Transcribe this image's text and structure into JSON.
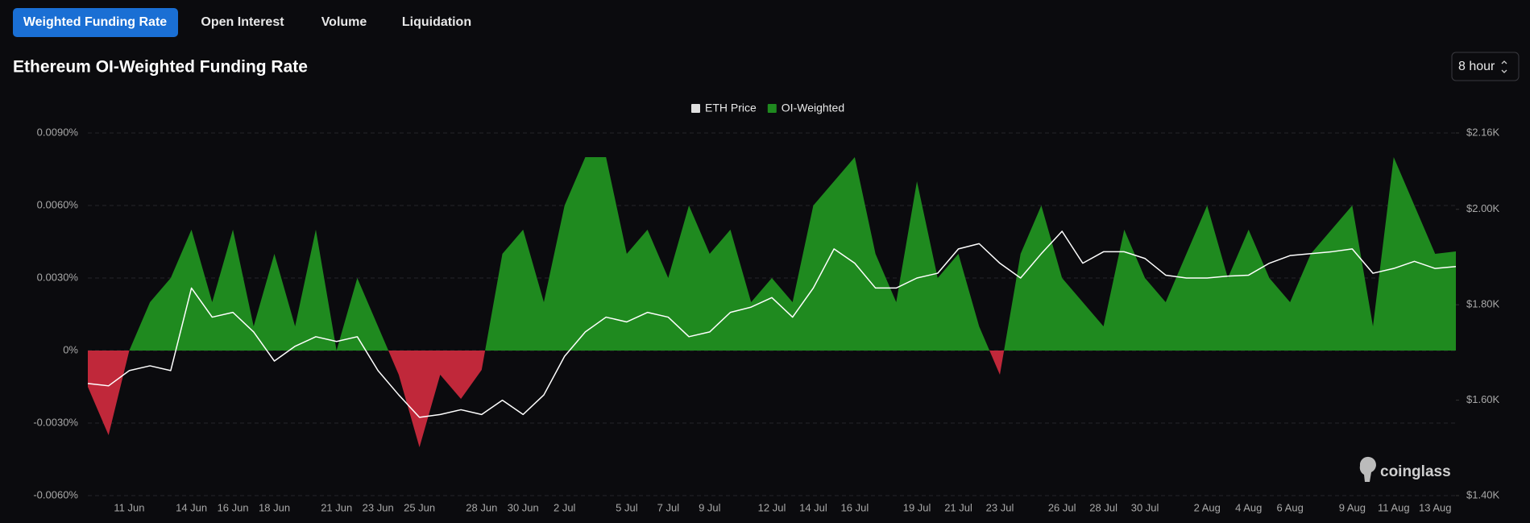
{
  "tabs": [
    "Weighted Funding Rate",
    "Open Interest",
    "Volume",
    "Liquidation"
  ],
  "interval": "8 hour",
  "watermark": "coinglass",
  "chart_data": {
    "type": "area",
    "title": "Ethereum OI-Weighted Funding Rate",
    "categories": [
      null,
      null,
      "11 Jun",
      null,
      null,
      "14 Jun",
      null,
      "16 Jun",
      null,
      "18 Jun",
      null,
      null,
      "21 Jun",
      null,
      "23 Jun",
      null,
      "25 Jun",
      null,
      null,
      "28 Jun",
      null,
      "30 Jun",
      null,
      "2 Jul",
      null,
      null,
      "5 Jul",
      null,
      "7 Jul",
      null,
      "9 Jul",
      null,
      null,
      "12 Jul",
      null,
      "14 Jul",
      null,
      "16 Jul",
      null,
      null,
      "19 Jul",
      null,
      "21 Jul",
      null,
      "23 Jul",
      null,
      null,
      "26 Jul",
      null,
      "28 Jul",
      null,
      "30 Jul",
      null,
      null,
      "2 Aug",
      null,
      "4 Aug",
      null,
      "6 Aug",
      null,
      null,
      "9 Aug",
      null,
      "11 Aug",
      null,
      "13 Aug",
      null
    ],
    "series": [
      {
        "name": "ETH Price",
        "type": "line",
        "axis": "y2",
        "color": "#ffffff",
        "values": [
          1635,
          1630,
          1662,
          1672,
          1662,
          1835,
          1774,
          1784,
          1743,
          1682,
          1713,
          1733,
          1723,
          1733,
          1662,
          1611,
          1564,
          1570,
          1580,
          1570,
          1600,
          1570,
          1611,
          1692,
          1743,
          1774,
          1764,
          1784,
          1774,
          1733,
          1743,
          1784,
          1795,
          1815,
          1774,
          1835,
          1917,
          1887,
          1835,
          1835,
          1856,
          1866,
          1917,
          1928,
          1887,
          1856,
          1907,
          1954,
          1887,
          1911,
          1911,
          1897,
          1862,
          1856,
          1856,
          1860,
          1862,
          1887,
          1903,
          1907,
          1911,
          1917,
          1866,
          1876,
          1891,
          1876,
          1880
        ]
      },
      {
        "name": "OI-Weighted",
        "type": "area",
        "color": "#1f8a1f",
        "negative_color": "#c0283a",
        "values": [
          -0.0015,
          -0.0035,
          0.0,
          0.002,
          0.003,
          0.005,
          0.002,
          0.005,
          0.001,
          0.004,
          0.001,
          0.005,
          0.0,
          0.003,
          0.001,
          -0.001,
          -0.004,
          -0.001,
          -0.002,
          -0.0008,
          0.004,
          0.005,
          0.002,
          0.006,
          0.008,
          0.008,
          0.004,
          0.005,
          0.003,
          0.006,
          0.004,
          0.005,
          0.002,
          0.003,
          0.002,
          0.006,
          0.007,
          0.008,
          0.004,
          0.002,
          0.007,
          0.003,
          0.004,
          0.001,
          -0.001,
          0.004,
          0.006,
          0.003,
          0.002,
          0.001,
          0.005,
          0.003,
          0.002,
          0.004,
          0.006,
          0.003,
          0.005,
          0.003,
          0.002,
          0.004,
          0.005,
          0.006,
          0.001,
          0.008,
          0.006,
          0.004,
          0.0041
        ]
      }
    ],
    "ylim": [
      -0.006,
      0.009
    ],
    "yticks": [
      {
        "value": -0.006,
        "label": "-0.0060%"
      },
      {
        "value": -0.003,
        "label": "-0.0030%"
      },
      {
        "value": 0,
        "label": "0%"
      },
      {
        "value": 0.003,
        "label": "0.0030%"
      },
      {
        "value": 0.006,
        "label": "0.0060%"
      },
      {
        "value": 0.009,
        "label": "0.0090%"
      }
    ],
    "y2lim": [
      1400,
      2160
    ],
    "y2ticks": [
      {
        "value": 1400,
        "label": "$1.40K"
      },
      {
        "value": 1600,
        "label": "$1.60K"
      },
      {
        "value": 1800,
        "label": "$1.80K"
      },
      {
        "value": 2000,
        "label": "$2.00K"
      },
      {
        "value": 2160,
        "label": "$2.16K"
      }
    ],
    "grid": true
  }
}
